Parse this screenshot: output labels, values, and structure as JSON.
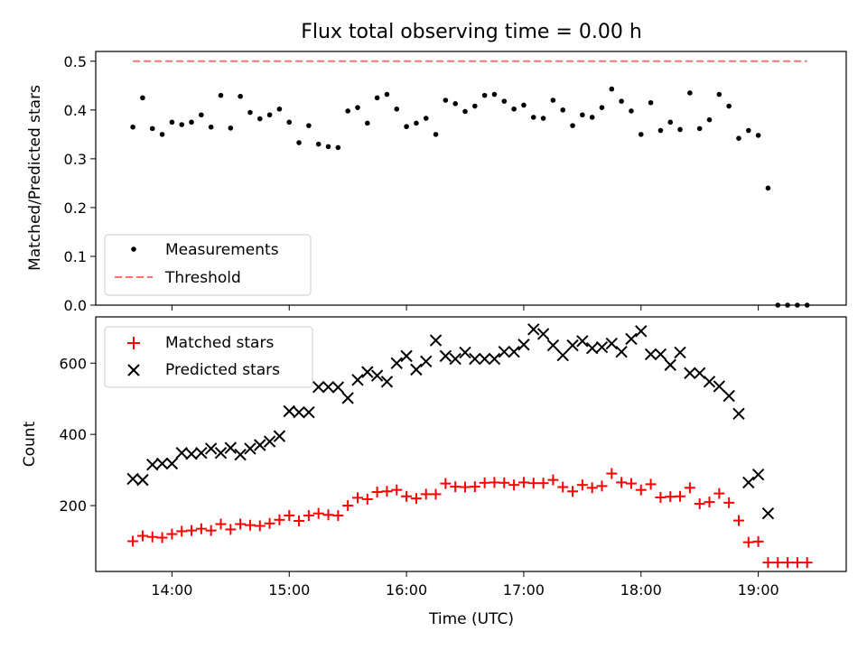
{
  "chart_data": [
    {
      "type": "scatter",
      "title": "Flux total observing time = 0.00 h",
      "ylabel": "Matched/Predicted stars",
      "xlabel": "",
      "ylim": [
        0,
        0.52
      ],
      "yticks": [
        0.0,
        0.1,
        0.2,
        0.3,
        0.4,
        0.5
      ],
      "ytick_labels": [
        "0.0",
        "0.1",
        "0.2",
        "0.3",
        "0.4",
        "0.5"
      ],
      "xlim": [
        "13:21",
        "19:45"
      ],
      "grid": false,
      "legend_position": "lower-left",
      "series": [
        {
          "name": "Measurements",
          "marker": "dot",
          "color": "#000000",
          "x": [
            "13:40",
            "13:45",
            "13:50",
            "13:55",
            "14:00",
            "14:05",
            "14:10",
            "14:15",
            "14:20",
            "14:25",
            "14:30",
            "14:35",
            "14:40",
            "14:45",
            "14:50",
            "14:55",
            "15:00",
            "15:05",
            "15:10",
            "15:15",
            "15:20",
            "15:25",
            "15:30",
            "15:35",
            "15:40",
            "15:45",
            "15:50",
            "15:55",
            "16:00",
            "16:05",
            "16:10",
            "16:15",
            "16:20",
            "16:25",
            "16:30",
            "16:35",
            "16:40",
            "16:45",
            "16:50",
            "16:55",
            "17:00",
            "17:05",
            "17:10",
            "17:15",
            "17:20",
            "17:25",
            "17:30",
            "17:35",
            "17:40",
            "17:45",
            "17:50",
            "17:55",
            "18:00",
            "18:05",
            "18:10",
            "18:15",
            "18:20",
            "18:25",
            "18:30",
            "18:35",
            "18:40",
            "18:45",
            "18:50",
            "18:55",
            "19:00",
            "19:05",
            "19:10",
            "19:15",
            "19:20",
            "19:25"
          ],
          "y": [
            0.365,
            0.425,
            0.362,
            0.35,
            0.375,
            0.37,
            0.375,
            0.39,
            0.365,
            0.43,
            0.363,
            0.428,
            0.395,
            0.382,
            0.39,
            0.402,
            0.375,
            0.333,
            0.368,
            0.33,
            0.325,
            0.323,
            0.398,
            0.405,
            0.373,
            0.425,
            0.432,
            0.402,
            0.366,
            0.373,
            0.383,
            0.35,
            0.42,
            0.413,
            0.397,
            0.408,
            0.43,
            0.432,
            0.418,
            0.402,
            0.41,
            0.385,
            0.383,
            0.42,
            0.4,
            0.368,
            0.39,
            0.385,
            0.405,
            0.443,
            0.418,
            0.398,
            0.35,
            0.415,
            0.358,
            0.375,
            0.36,
            0.435,
            0.362,
            0.38,
            0.432,
            0.408,
            0.342,
            0.358,
            0.348,
            0.24,
            0.0,
            0.0,
            0.0,
            0.0
          ]
        },
        {
          "name": "Threshold",
          "style": "dashed-line",
          "color": "#ff7070",
          "x": [
            "13:40",
            "19:25"
          ],
          "y": [
            0.5,
            0.5
          ]
        }
      ]
    },
    {
      "type": "scatter",
      "title": "",
      "ylabel": "Count",
      "xlabel": "Time (UTC)",
      "ylim": [
        15,
        730
      ],
      "yticks": [
        200,
        400,
        600
      ],
      "ytick_labels": [
        "200",
        "400",
        "600"
      ],
      "xlim": [
        "13:21",
        "19:45"
      ],
      "xticks": [
        "14:00",
        "15:00",
        "16:00",
        "17:00",
        "18:00",
        "19:00"
      ],
      "xtick_labels": [
        "14:00",
        "15:00",
        "16:00",
        "17:00",
        "18:00",
        "19:00"
      ],
      "grid": false,
      "legend_position": "upper-left",
      "series": [
        {
          "name": "Matched stars",
          "marker": "plus",
          "color": "#ff0000",
          "x": [
            "13:40",
            "13:45",
            "13:50",
            "13:55",
            "14:00",
            "14:05",
            "14:10",
            "14:15",
            "14:20",
            "14:25",
            "14:30",
            "14:35",
            "14:40",
            "14:45",
            "14:50",
            "14:55",
            "15:00",
            "15:05",
            "15:10",
            "15:15",
            "15:20",
            "15:25",
            "15:30",
            "15:35",
            "15:40",
            "15:45",
            "15:50",
            "15:55",
            "16:00",
            "16:05",
            "16:10",
            "16:15",
            "16:20",
            "16:25",
            "16:30",
            "16:35",
            "16:40",
            "16:45",
            "16:50",
            "16:55",
            "17:00",
            "17:05",
            "17:10",
            "17:15",
            "17:20",
            "17:25",
            "17:30",
            "17:35",
            "17:40",
            "17:45",
            "17:50",
            "17:55",
            "18:00",
            "18:05",
            "18:10",
            "18:15",
            "18:20",
            "18:25",
            "18:30",
            "18:35",
            "18:40",
            "18:45",
            "18:50",
            "18:55",
            "19:00",
            "19:05",
            "19:10",
            "19:15",
            "19:20",
            "19:25"
          ],
          "y": [
            100,
            115,
            112,
            110,
            120,
            128,
            130,
            135,
            130,
            148,
            133,
            148,
            145,
            143,
            150,
            160,
            172,
            157,
            172,
            178,
            174,
            172,
            200,
            222,
            218,
            238,
            240,
            244,
            226,
            220,
            232,
            232,
            262,
            253,
            252,
            253,
            264,
            265,
            264,
            258,
            265,
            263,
            263,
            272,
            252,
            240,
            258,
            250,
            255,
            290,
            265,
            262,
            244,
            260,
            223,
            225,
            226,
            250,
            205,
            210,
            234,
            208,
            158,
            97,
            99,
            40,
            40,
            40,
            40,
            40
          ]
        },
        {
          "name": "Predicted stars",
          "marker": "x",
          "color": "#000000",
          "x": [
            "13:40",
            "13:45",
            "13:50",
            "13:55",
            "14:00",
            "14:05",
            "14:10",
            "14:15",
            "14:20",
            "14:25",
            "14:30",
            "14:35",
            "14:40",
            "14:45",
            "14:50",
            "14:55",
            "15:00",
            "15:05",
            "15:10",
            "15:15",
            "15:20",
            "15:25",
            "15:30",
            "15:35",
            "15:40",
            "15:45",
            "15:50",
            "15:55",
            "16:00",
            "16:05",
            "16:10",
            "16:15",
            "16:20",
            "16:25",
            "16:30",
            "16:35",
            "16:40",
            "16:45",
            "16:50",
            "16:55",
            "17:00",
            "17:05",
            "17:10",
            "17:15",
            "17:20",
            "17:25",
            "17:30",
            "17:35",
            "17:40",
            "17:45",
            "17:50",
            "17:55",
            "18:00",
            "18:05",
            "18:10",
            "18:15",
            "18:20",
            "18:25",
            "18:30",
            "18:35",
            "18:40",
            "18:45",
            "18:50",
            "18:55",
            "19:00",
            "19:05"
          ],
          "y": [
            275,
            272,
            315,
            318,
            318,
            348,
            345,
            348,
            360,
            348,
            362,
            343,
            360,
            370,
            380,
            395,
            465,
            462,
            462,
            533,
            533,
            532,
            502,
            553,
            575,
            565,
            548,
            600,
            620,
            582,
            605,
            664,
            620,
            612,
            630,
            612,
            612,
            612,
            632,
            632,
            652,
            695,
            682,
            650,
            622,
            650,
            662,
            642,
            645,
            655,
            632,
            668,
            690,
            625,
            625,
            595,
            630,
            572,
            572,
            548,
            535,
            508,
            458,
            265,
            287,
            178
          ]
        }
      ]
    }
  ]
}
